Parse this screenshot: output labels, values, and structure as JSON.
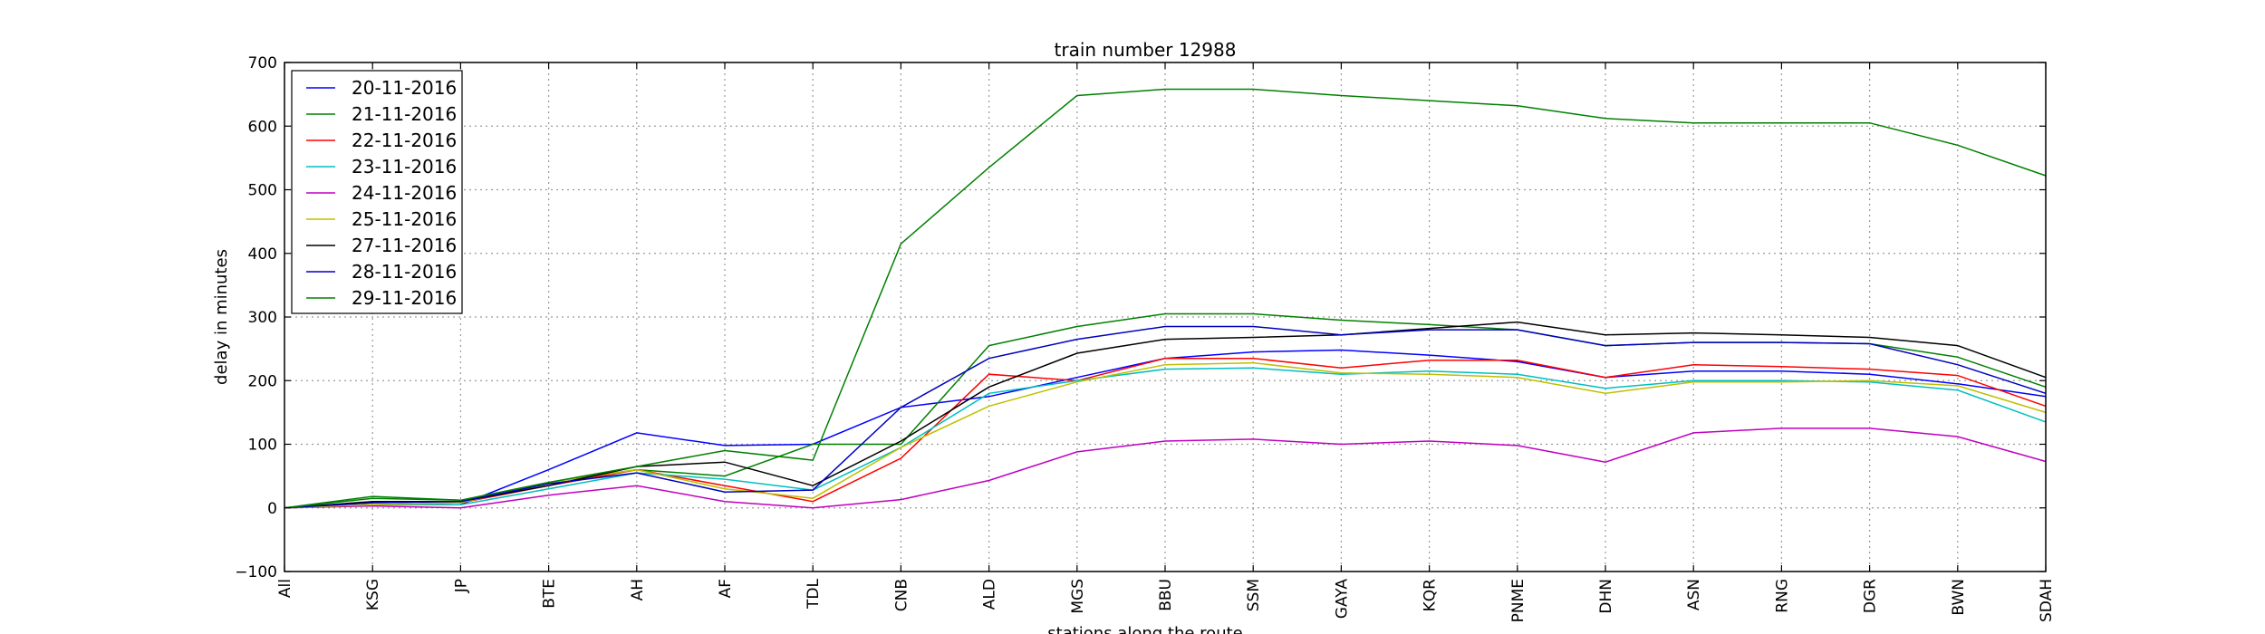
{
  "chart_data": {
    "type": "line",
    "title": "train number 12988",
    "xlabel": "stations along the route",
    "ylabel": "delay in minutes",
    "ylim": [
      -100,
      700
    ],
    "yticks": [
      "−100",
      "0",
      "100",
      "200",
      "300",
      "400",
      "500",
      "600",
      "700"
    ],
    "categories": [
      "All",
      "KSG",
      "JP",
      "BTE",
      "AH",
      "AF",
      "TDL",
      "CNB",
      "ALD",
      "MGS",
      "BBU",
      "SSM",
      "GAYA",
      "KQR",
      "PNME",
      "DHN",
      "ASN",
      "RNG",
      "DGR",
      "BWN",
      "SDAH"
    ],
    "grid": true,
    "legend_position": "top-left",
    "series": [
      {
        "name": "20-11-2016",
        "color": "#0000ff",
        "values": [
          0,
          5,
          5,
          60,
          118,
          98,
          100,
          158,
          175,
          205,
          235,
          245,
          248,
          240,
          230,
          205,
          215,
          215,
          210,
          195,
          175
        ]
      },
      {
        "name": "21-11-2016",
        "color": "#008000",
        "values": [
          0,
          18,
          12,
          40,
          60,
          50,
          100,
          100,
          255,
          285,
          305,
          305,
          295,
          288,
          280,
          255,
          260,
          260,
          258,
          237,
          190
        ]
      },
      {
        "name": "22-11-2016",
        "color": "#ff0000",
        "values": [
          0,
          5,
          8,
          35,
          60,
          35,
          10,
          78,
          210,
          200,
          235,
          235,
          220,
          232,
          232,
          205,
          225,
          222,
          218,
          208,
          160
        ]
      },
      {
        "name": "23-11-2016",
        "color": "#00bfbf",
        "values": [
          0,
          5,
          5,
          30,
          55,
          45,
          28,
          95,
          180,
          200,
          218,
          220,
          210,
          215,
          210,
          188,
          200,
          200,
          198,
          185,
          135
        ]
      },
      {
        "name": "24-11-2016",
        "color": "#bf00bf",
        "values": [
          0,
          3,
          0,
          20,
          35,
          10,
          0,
          13,
          43,
          88,
          105,
          108,
          100,
          105,
          98,
          72,
          118,
          125,
          125,
          112,
          73
        ]
      },
      {
        "name": "25-11-2016",
        "color": "#bfbf00",
        "values": [
          0,
          5,
          8,
          40,
          60,
          30,
          15,
          95,
          160,
          198,
          225,
          228,
          212,
          210,
          205,
          180,
          198,
          198,
          200,
          192,
          150
        ]
      },
      {
        "name": "27-11-2016",
        "color": "#000000",
        "values": [
          0,
          10,
          10,
          35,
          65,
          72,
          35,
          105,
          190,
          243,
          265,
          268,
          272,
          282,
          292,
          272,
          275,
          272,
          268,
          255,
          205
        ]
      },
      {
        "name": "28-11-2016",
        "color": "#0000bf",
        "values": [
          0,
          8,
          10,
          38,
          55,
          25,
          28,
          158,
          235,
          265,
          285,
          285,
          272,
          280,
          280,
          255,
          260,
          260,
          258,
          225,
          180
        ]
      },
      {
        "name": "29-11-2016",
        "color": "#008000",
        "values": [
          0,
          15,
          12,
          40,
          65,
          90,
          75,
          415,
          535,
          648,
          658,
          658,
          648,
          640,
          632,
          612,
          605,
          605,
          605,
          570,
          522
        ]
      }
    ]
  }
}
